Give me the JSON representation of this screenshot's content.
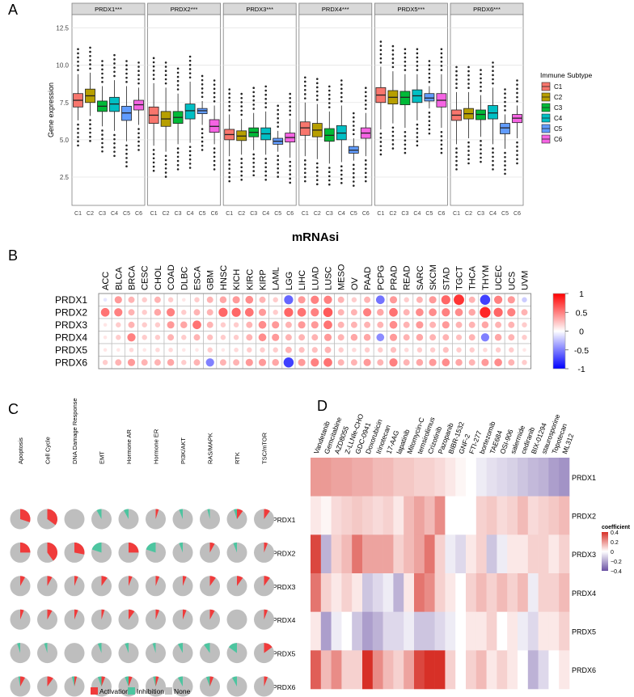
{
  "panel_labels": {
    "a": "A",
    "b": "B",
    "c": "C",
    "d": "D"
  },
  "chart_data": [
    {
      "type": "box",
      "panel": "A",
      "ylabel": "Gene expression",
      "yticks": [
        2.5,
        5.0,
        7.5,
        10.0,
        12.5
      ],
      "ylim": [
        0.6,
        13.4
      ],
      "categories": [
        "C1",
        "C2",
        "C3",
        "C4",
        "C5",
        "C6"
      ],
      "legend": {
        "title": "Immune Subtype",
        "entries": [
          "C1",
          "C2",
          "C3",
          "C4",
          "C5",
          "C6"
        ],
        "placement": "right"
      },
      "colors": [
        "#F8766D",
        "#B79F00",
        "#00BA38",
        "#00BFC4",
        "#619CFF",
        "#F564E3"
      ],
      "facets": [
        {
          "title": "PRDX1***",
          "stats": [
            [
              6.3,
              7.2,
              7.65,
              8.1,
              9.4
            ],
            [
              6.6,
              7.5,
              7.95,
              8.4,
              9.5
            ],
            [
              5.9,
              6.9,
              7.25,
              7.6,
              8.6
            ],
            [
              5.6,
              6.9,
              7.4,
              7.85,
              9.0
            ],
            [
              4.9,
              6.3,
              6.8,
              7.25,
              8.6
            ],
            [
              6.0,
              7.0,
              7.35,
              7.65,
              8.5
            ]
          ]
        },
        {
          "title": "PRDX2***",
          "stats": [
            [
              4.6,
              6.1,
              6.65,
              7.2,
              8.8
            ],
            [
              4.2,
              5.9,
              6.4,
              6.9,
              8.5
            ],
            [
              4.7,
              6.1,
              6.5,
              6.9,
              8.1
            ],
            [
              4.8,
              6.4,
              6.95,
              7.4,
              8.9
            ],
            [
              6.0,
              6.75,
              6.95,
              7.1,
              7.6
            ],
            [
              4.7,
              5.5,
              5.9,
              6.35,
              7.3
            ]
          ]
        },
        {
          "title": "PRDX3***",
          "stats": [
            [
              3.9,
              5.0,
              5.35,
              5.7,
              6.7
            ],
            [
              4.0,
              4.95,
              5.25,
              5.6,
              6.4
            ],
            [
              4.3,
              5.2,
              5.5,
              5.8,
              6.8
            ],
            [
              4.0,
              5.0,
              5.4,
              5.8,
              6.9
            ],
            [
              4.2,
              4.7,
              4.9,
              5.1,
              5.6
            ],
            [
              3.8,
              4.85,
              5.15,
              5.45,
              6.4
            ]
          ]
        },
        {
          "title": "PRDX4***",
          "stats": [
            [
              3.9,
              5.3,
              5.8,
              6.2,
              7.5
            ],
            [
              3.7,
              5.2,
              5.65,
              6.1,
              7.4
            ],
            [
              3.4,
              4.9,
              5.3,
              5.75,
              6.9
            ],
            [
              3.5,
              5.0,
              5.45,
              5.95,
              7.3
            ],
            [
              3.6,
              4.1,
              4.3,
              4.55,
              5.1
            ],
            [
              3.9,
              5.1,
              5.45,
              5.8,
              6.8
            ]
          ]
        },
        {
          "title": "PRDX5***",
          "stats": [
            [
              5.7,
              7.5,
              8.0,
              8.5,
              9.9
            ],
            [
              6.1,
              7.4,
              7.85,
              8.3,
              9.6
            ],
            [
              5.8,
              7.35,
              7.85,
              8.25,
              9.4
            ],
            [
              6.3,
              7.5,
              7.95,
              8.35,
              9.4
            ],
            [
              7.1,
              7.6,
              7.8,
              8.1,
              8.6
            ],
            [
              5.8,
              7.2,
              7.65,
              8.1,
              9.4
            ]
          ]
        },
        {
          "title": "PRDX6***",
          "stats": [
            [
              4.7,
              6.3,
              6.65,
              7.0,
              8.2
            ],
            [
              5.1,
              6.4,
              6.75,
              7.1,
              8.2
            ],
            [
              5.2,
              6.35,
              6.7,
              7.0,
              8.0
            ],
            [
              4.7,
              6.4,
              6.8,
              7.3,
              8.5
            ],
            [
              4.4,
              5.4,
              5.8,
              6.1,
              6.7
            ],
            [
              5.1,
              6.15,
              6.45,
              6.7,
              7.3
            ]
          ]
        }
      ]
    },
    {
      "type": "heatmap",
      "panel": "B",
      "title": "mRNAsi",
      "columns": [
        "ACC",
        "BLCA",
        "BRCA",
        "CESC",
        "CHOL",
        "COAD",
        "DLBC",
        "ESCA",
        "GBM",
        "HNSC",
        "KICH",
        "KIRC",
        "KIRP",
        "LAML",
        "LGG",
        "LIHC",
        "LUAD",
        "LUSC",
        "MESO",
        "OV",
        "PAAD",
        "PCPG",
        "PRAD",
        "READ",
        "SARC",
        "SKCM",
        "STAD",
        "TGCT",
        "THCA",
        "THYM",
        "UCEC",
        "UCS",
        "UVM"
      ],
      "rows": [
        "PRDX1",
        "PRDX2",
        "PRDX3",
        "PRDX4",
        "PRDX5",
        "PRDX6"
      ],
      "values": [
        [
          -0.1,
          0.4,
          0.3,
          0.2,
          0.3,
          0.2,
          0.1,
          0.2,
          0.3,
          0.35,
          0.4,
          0.45,
          0.3,
          0.2,
          -0.6,
          0.4,
          0.5,
          0.5,
          0.3,
          0.2,
          0.3,
          -0.55,
          0.4,
          0.2,
          0.3,
          0.4,
          0.6,
          0.8,
          0.3,
          -0.75,
          0.5,
          0.4,
          -0.2
        ],
        [
          0.55,
          0.5,
          0.3,
          0.2,
          0.35,
          0.5,
          0.2,
          0.3,
          0.3,
          0.6,
          0.6,
          0.55,
          0.4,
          0.2,
          0.6,
          0.55,
          0.5,
          0.65,
          0.3,
          0.3,
          0.5,
          0.35,
          0.55,
          0.3,
          0.45,
          0.45,
          0.5,
          0.45,
          0.35,
          0.85,
          0.6,
          0.5,
          0.3
        ],
        [
          0.1,
          0.2,
          0.3,
          0.2,
          0.2,
          0.4,
          0.35,
          0.55,
          0.3,
          0.2,
          0.2,
          0.3,
          0.45,
          0.4,
          0.3,
          0.4,
          0.4,
          0.55,
          0.3,
          0.3,
          0.3,
          0.3,
          0.45,
          0.3,
          0.4,
          0.3,
          0.4,
          0.3,
          0.3,
          0.35,
          0.3,
          0.3,
          0.2
        ],
        [
          0.1,
          0.2,
          0.5,
          0.2,
          0.2,
          0.3,
          0.2,
          0.3,
          0.25,
          0.2,
          0.2,
          0.3,
          0.45,
          0.4,
          0.3,
          0.3,
          0.3,
          0.4,
          0.3,
          0.35,
          0.35,
          -0.45,
          0.4,
          0.3,
          0.35,
          0.3,
          0.3,
          0.25,
          0.3,
          -0.5,
          0.35,
          0.3,
          0.2
        ],
        [
          0.1,
          0.1,
          0.15,
          0.1,
          0.15,
          0.15,
          0.1,
          0.1,
          0.2,
          0.1,
          0.15,
          0.2,
          0.2,
          0.2,
          0.3,
          0.25,
          0.25,
          0.3,
          0.2,
          0.15,
          0.2,
          0.2,
          0.25,
          0.15,
          0.2,
          0.2,
          0.25,
          0.2,
          0.2,
          0.15,
          0.2,
          0.2,
          0.1
        ],
        [
          0.2,
          0.3,
          0.4,
          0.3,
          0.3,
          0.35,
          0.2,
          0.3,
          -0.5,
          0.3,
          0.3,
          0.4,
          0.4,
          0.35,
          -0.75,
          0.4,
          0.5,
          0.55,
          0.3,
          0.3,
          0.4,
          0.3,
          0.5,
          0.3,
          0.35,
          0.4,
          0.45,
          0.35,
          0.3,
          0.4,
          0.45,
          0.3,
          0.2
        ]
      ],
      "legend": {
        "ticks": [
          "1",
          "0.5",
          "0",
          "-0.5",
          "-1"
        ],
        "colors": {
          "low": "#0000FF",
          "mid": "#FFFFFF",
          "high": "#FF0000"
        }
      }
    },
    {
      "type": "pie",
      "panel": "C",
      "columns": [
        "Apoptosis",
        "Cell Cycle",
        "DNA Damage Response",
        "EMT",
        "Hormone AR",
        "Hormone ER",
        "PI3K/AKT",
        "RAS/MAPK",
        "RTK",
        "TSC/mTOR"
      ],
      "rows": [
        "PRDX1",
        "PRDX2",
        "PRDX3",
        "PRDX4",
        "PRDX5",
        "PRDX6"
      ],
      "shares": [
        [
          [
            0.3,
            0.0
          ],
          [
            0.35,
            0.0
          ],
          [
            0.0,
            0.0
          ],
          [
            0.0,
            0.08
          ],
          [
            0.0,
            0.08
          ],
          [
            0.05,
            0.0
          ],
          [
            0.0,
            0.06
          ],
          [
            0.0,
            0.04
          ],
          [
            0.1,
            0.05
          ],
          [
            0.1,
            0.0
          ]
        ],
        [
          [
            0.25,
            0.0
          ],
          [
            0.4,
            0.0
          ],
          [
            0.28,
            0.0
          ],
          [
            0.0,
            0.2
          ],
          [
            0.25,
            0.0
          ],
          [
            0.0,
            0.2
          ],
          [
            0.0,
            0.06
          ],
          [
            0.08,
            0.0
          ],
          [
            0.0,
            0.06
          ],
          [
            0.06,
            0.0
          ]
        ],
        [
          [
            0.08,
            0.0
          ],
          [
            0.08,
            0.0
          ],
          [
            0.06,
            0.0
          ],
          [
            0.1,
            0.0
          ],
          [
            0.06,
            0.0
          ],
          [
            0.06,
            0.0
          ],
          [
            0.06,
            0.0
          ],
          [
            0.1,
            0.0
          ],
          [
            0.1,
            0.0
          ],
          [
            0.1,
            0.0
          ]
        ],
        [
          [
            0.06,
            0.0
          ],
          [
            0.08,
            0.0
          ],
          [
            0.06,
            0.0
          ],
          [
            0.05,
            0.0
          ],
          [
            0.1,
            0.0
          ],
          [
            0.06,
            0.0
          ],
          [
            0.06,
            0.0
          ],
          [
            0.08,
            0.0
          ],
          [
            0.0,
            0.0
          ],
          [
            0.06,
            0.0
          ]
        ],
        [
          [
            0.0,
            0.05
          ],
          [
            0.0,
            0.05
          ],
          [
            0.0,
            0.0
          ],
          [
            0.0,
            0.06
          ],
          [
            0.0,
            0.06
          ],
          [
            0.0,
            0.05
          ],
          [
            0.0,
            0.08
          ],
          [
            0.0,
            0.1
          ],
          [
            0.0,
            0.15
          ],
          [
            0.15,
            0.0
          ]
        ],
        [
          [
            0.08,
            0.03
          ],
          [
            0.1,
            0.0
          ],
          [
            0.04,
            0.04
          ],
          [
            0.06,
            0.06
          ],
          [
            0.06,
            0.06
          ],
          [
            0.05,
            0.04
          ],
          [
            0.0,
            0.08
          ],
          [
            0.06,
            0.06
          ],
          [
            0.0,
            0.08
          ],
          [
            0.06,
            0.0
          ]
        ]
      ],
      "legend": {
        "entries": [
          "Activation",
          "Inhibition",
          "None"
        ],
        "colors": [
          "#F03B3B",
          "#4DC5A0",
          "#BEBEBE"
        ],
        "placement": "bottom"
      }
    },
    {
      "type": "heatmap",
      "panel": "D",
      "columns": [
        "Vandetanib",
        "Gemcitabine",
        "AZD8055",
        "Z-LLNle-CHO",
        "GDC-0941",
        "Doxorubicin",
        "Irinotecan",
        "17-AAG",
        "lapatinib",
        "Mitomycin-C",
        "temsirolimus",
        "Crizotinib",
        "Pazopanib",
        "BIBR-1532",
        "GNF-2",
        "FTI-277",
        "bortezomib",
        "TAE684",
        "OSI-906",
        "salermide",
        "cediranib",
        "BIX-01294",
        "staurosporine",
        "Topotecan",
        "ML312"
      ],
      "rows": [
        "PRDX1",
        "PRDX2",
        "PRDX3",
        "PRDX4",
        "PRDX5",
        "PRDX6"
      ],
      "values": [
        [
          0.22,
          0.22,
          0.2,
          0.2,
          0.18,
          0.18,
          0.15,
          0.15,
          0.12,
          0.12,
          0.1,
          0.1,
          0.08,
          0.05,
          0.02,
          0.0,
          -0.05,
          -0.08,
          -0.1,
          -0.12,
          -0.15,
          -0.18,
          -0.2,
          -0.25,
          -0.28
        ],
        [
          0.05,
          0.02,
          0.08,
          0.1,
          0.12,
          0.1,
          0.08,
          0.1,
          0.05,
          0.15,
          0.2,
          0.15,
          0.25,
          0.0,
          0.0,
          0.0,
          0.1,
          0.12,
          0.08,
          0.1,
          0.15,
          0.08,
          0.1,
          0.12,
          0.15
        ],
        [
          0.4,
          -0.2,
          0.1,
          0.15,
          0.3,
          0.2,
          0.2,
          0.2,
          0.1,
          0.15,
          0.2,
          0.3,
          0.1,
          -0.05,
          -0.1,
          0.05,
          0.1,
          -0.15,
          -0.05,
          0.05,
          0.05,
          0.1,
          0.1,
          0.05,
          0.1
        ],
        [
          0.3,
          0.1,
          0.05,
          0.1,
          0.05,
          -0.15,
          -0.1,
          -0.05,
          -0.2,
          0.05,
          0.3,
          0.25,
          0.1,
          0.05,
          0.0,
          0.1,
          0.15,
          0.1,
          0.15,
          0.1,
          0.15,
          -0.05,
          0.1,
          0.1,
          0.15
        ],
        [
          0.05,
          -0.25,
          -0.05,
          0.0,
          -0.15,
          -0.25,
          -0.2,
          -0.1,
          -0.1,
          -0.05,
          -0.15,
          -0.15,
          -0.1,
          -0.05,
          0.0,
          0.05,
          0.05,
          0.1,
          0.0,
          0.05,
          -0.05,
          -0.1,
          0.05,
          0.05,
          0.1
        ],
        [
          0.35,
          0.15,
          0.25,
          0.1,
          0.1,
          0.45,
          0.25,
          0.15,
          0.1,
          0.2,
          0.4,
          0.45,
          0.45,
          0.1,
          0.0,
          0.1,
          0.15,
          0.05,
          0.1,
          0.05,
          0.0,
          -0.2,
          -0.1,
          0.0,
          0.05
        ]
      ],
      "legend": {
        "title": "coefficient",
        "ticks": [
          "0.4",
          "0.2",
          "0",
          "−0.2",
          "−0.4"
        ],
        "colors": {
          "low": "#6A51A3",
          "mid": "#FFFFFF",
          "high": "#D73027"
        }
      }
    }
  ]
}
